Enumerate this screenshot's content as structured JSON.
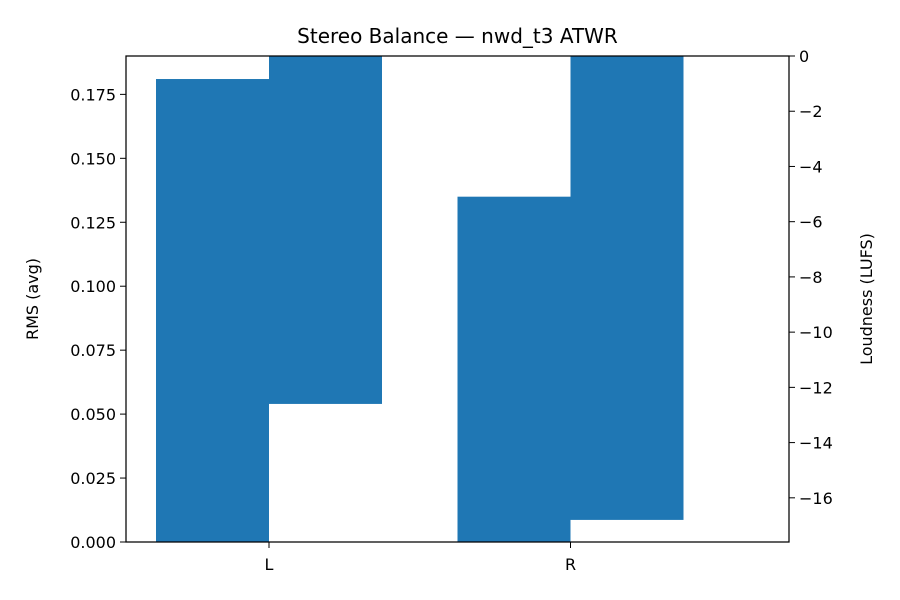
{
  "chart_data": {
    "type": "bar",
    "title": "Stereo Balance — nwd_t3 ATWR",
    "xlabel": "",
    "categories": [
      "L",
      "R"
    ],
    "colors": {
      "bar": "#1f77b4"
    },
    "left_axis": {
      "label": "RMS (avg)",
      "ylim": [
        0,
        0.19
      ],
      "ticks": [
        0,
        0.025,
        0.05,
        0.075,
        0.1,
        0.125,
        0.15,
        0.175
      ],
      "tick_labels": [
        "0.000",
        "0.025",
        "0.050",
        "0.075",
        "0.100",
        "0.125",
        "0.150",
        "0.175"
      ]
    },
    "right_axis": {
      "label": "Loudness (LUFS)",
      "ylim": [
        -17.6,
        0
      ],
      "ticks": [
        0,
        -2,
        -4,
        -6,
        -8,
        -10,
        -12,
        -14,
        -16
      ],
      "tick_labels": [
        "0",
        "−2",
        "−4",
        "−6",
        "−8",
        "−10",
        "−12",
        "−14",
        "−16"
      ]
    },
    "series": [
      {
        "axis": "left",
        "values": [
          0.181,
          0.135
        ]
      },
      {
        "axis": "right",
        "values": [
          -12.6,
          -16.8
        ]
      }
    ]
  }
}
